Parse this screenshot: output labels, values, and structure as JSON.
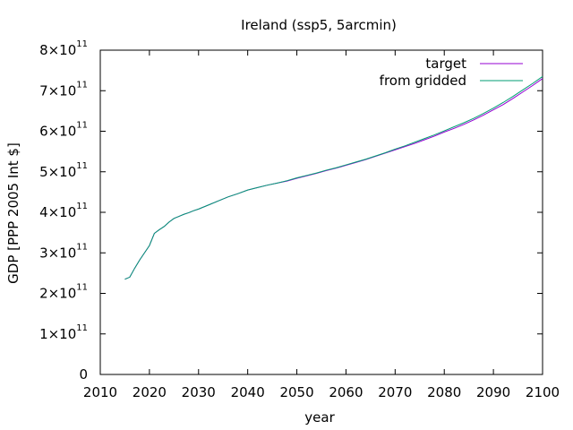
{
  "chart_data": {
    "type": "line",
    "title": "Ireland (ssp5, 5arcmin)",
    "xlabel": "year",
    "ylabel": "GDP [PPP 2005 Int $]",
    "xlim": [
      2010,
      2100
    ],
    "ylim": [
      0,
      800000000000
    ],
    "xticks": [
      {
        "value": 2010,
        "label": "2010"
      },
      {
        "value": 2020,
        "label": "2020"
      },
      {
        "value": 2030,
        "label": "2030"
      },
      {
        "value": 2040,
        "label": "2040"
      },
      {
        "value": 2050,
        "label": "2050"
      },
      {
        "value": 2060,
        "label": "2060"
      },
      {
        "value": 2070,
        "label": "2070"
      },
      {
        "value": 2080,
        "label": "2080"
      },
      {
        "value": 2090,
        "label": "2090"
      },
      {
        "value": 2100,
        "label": "2100"
      }
    ],
    "yticks": [
      {
        "value": 0,
        "mant": "0",
        "exp": ""
      },
      {
        "value": 100000000000,
        "mant": "1×10",
        "exp": "11"
      },
      {
        "value": 200000000000,
        "mant": "2×10",
        "exp": "11"
      },
      {
        "value": 300000000000,
        "mant": "3×10",
        "exp": "11"
      },
      {
        "value": 400000000000,
        "mant": "4×10",
        "exp": "11"
      },
      {
        "value": 500000000000,
        "mant": "5×10",
        "exp": "11"
      },
      {
        "value": 600000000000,
        "mant": "6×10",
        "exp": "11"
      },
      {
        "value": 700000000000,
        "mant": "7×10",
        "exp": "11"
      },
      {
        "value": 800000000000,
        "mant": "8×10",
        "exp": "11"
      }
    ],
    "grid": false,
    "legend": "top-right",
    "series": [
      {
        "name": "target",
        "color": "#9400d3",
        "x": [
          2015,
          2016,
          2017,
          2018,
          2019,
          2020,
          2021,
          2022,
          2023,
          2024,
          2025,
          2026,
          2027,
          2028,
          2029,
          2030,
          2032,
          2034,
          2036,
          2038,
          2040,
          2042,
          2044,
          2046,
          2048,
          2050,
          2052,
          2054,
          2056,
          2058,
          2060,
          2062,
          2064,
          2066,
          2068,
          2070,
          2072,
          2074,
          2076,
          2078,
          2080,
          2082,
          2084,
          2086,
          2088,
          2090,
          2092,
          2094,
          2096,
          2098,
          2100
        ],
        "values": [
          235000000000,
          240000000000,
          262000000000,
          282000000000,
          300000000000,
          318000000000,
          348000000000,
          357000000000,
          365000000000,
          376000000000,
          385000000000,
          390000000000,
          395000000000,
          399000000000,
          404000000000,
          408000000000,
          418000000000,
          428000000000,
          438000000000,
          446000000000,
          455000000000,
          461000000000,
          467000000000,
          472000000000,
          477000000000,
          484000000000,
          490000000000,
          496000000000,
          503000000000,
          509000000000,
          516000000000,
          523000000000,
          530000000000,
          538000000000,
          546000000000,
          554000000000,
          562000000000,
          570000000000,
          579000000000,
          588000000000,
          598000000000,
          607000000000,
          617000000000,
          628000000000,
          640000000000,
          653000000000,
          666000000000,
          681000000000,
          697000000000,
          713000000000,
          730000000000
        ]
      },
      {
        "name": "from gridded",
        "color": "#009e73",
        "x": [
          2015,
          2016,
          2017,
          2018,
          2019,
          2020,
          2021,
          2022,
          2023,
          2024,
          2025,
          2026,
          2027,
          2028,
          2029,
          2030,
          2032,
          2034,
          2036,
          2038,
          2040,
          2042,
          2044,
          2046,
          2048,
          2050,
          2052,
          2054,
          2056,
          2058,
          2060,
          2062,
          2064,
          2066,
          2068,
          2070,
          2072,
          2074,
          2076,
          2078,
          2080,
          2082,
          2084,
          2086,
          2088,
          2090,
          2092,
          2094,
          2096,
          2098,
          2100
        ],
        "values": [
          235000000000,
          240000000000,
          262000000000,
          282000000000,
          300000000000,
          318000000000,
          348000000000,
          357000000000,
          365000000000,
          376000000000,
          385000000000,
          390000000000,
          395000000000,
          399000000000,
          404000000000,
          408000000000,
          418000000000,
          428000000000,
          438000000000,
          446000000000,
          455000000000,
          461000000000,
          467000000000,
          472000000000,
          478000000000,
          485000000000,
          491000000000,
          497000000000,
          504000000000,
          510000000000,
          517000000000,
          524000000000,
          531000000000,
          539000000000,
          547000000000,
          556000000000,
          564000000000,
          573000000000,
          582000000000,
          591000000000,
          601000000000,
          611000000000,
          621000000000,
          632000000000,
          644000000000,
          657000000000,
          671000000000,
          686000000000,
          702000000000,
          718000000000,
          735000000000
        ]
      }
    ]
  }
}
